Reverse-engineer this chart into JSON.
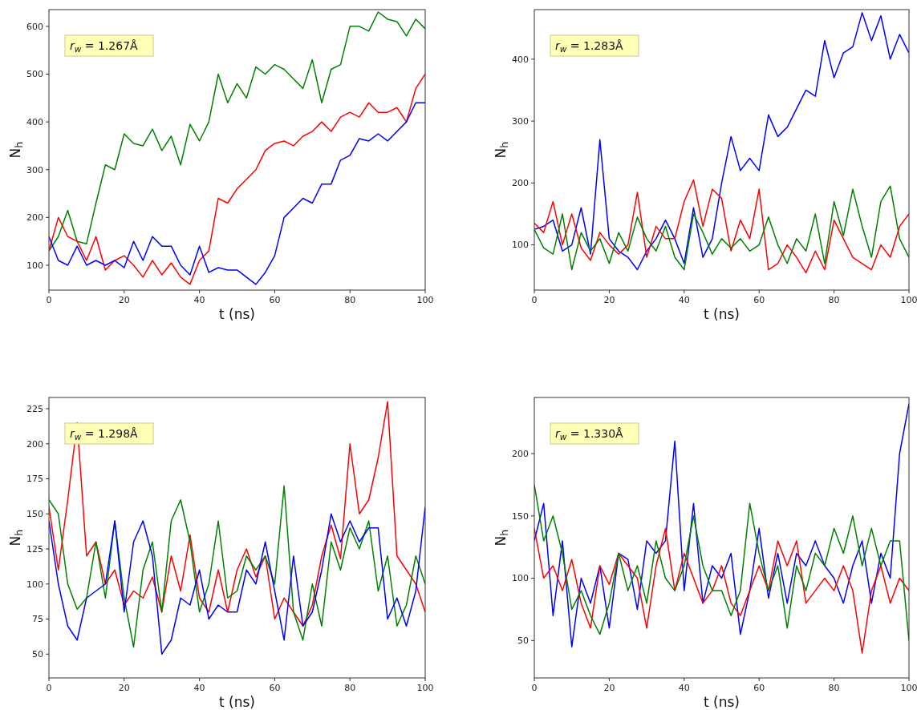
{
  "chart_data": [
    {
      "type": "line",
      "xlabel": "t (ns)",
      "ylabel": "N$_{h}$",
      "annotations": [
        "r$_{w}$ = 1.267Å"
      ],
      "xlim": [
        0,
        100
      ],
      "xticks": [
        0,
        20,
        40,
        60,
        80,
        100
      ],
      "ylim": [
        48,
        635
      ],
      "yticks": [
        100,
        200,
        300,
        400,
        500,
        600
      ],
      "x": [
        0,
        2.5,
        5,
        7.5,
        10,
        12.5,
        15,
        17.5,
        20,
        22.5,
        25,
        27.5,
        30,
        32.5,
        35,
        37.5,
        40,
        42.5,
        45,
        47.5,
        50,
        52.5,
        55,
        57.5,
        60,
        62.5,
        65,
        67.5,
        70,
        72.5,
        75,
        77.5,
        80,
        82.5,
        85,
        87.5,
        90,
        92.5,
        95,
        97.5,
        100
      ],
      "series": [
        {
          "color": "#008000",
          "values": [
            130,
            160,
            215,
            150,
            145,
            230,
            310,
            300,
            375,
            355,
            350,
            385,
            340,
            370,
            310,
            395,
            360,
            400,
            500,
            440,
            480,
            450,
            515,
            500,
            520,
            510,
            490,
            470,
            530,
            440,
            510,
            520,
            600,
            600,
            590,
            630,
            615,
            610,
            580,
            615,
            595
          ]
        },
        {
          "color": "#ff0000",
          "values": [
            130,
            200,
            160,
            150,
            110,
            160,
            90,
            110,
            120,
            100,
            75,
            110,
            80,
            105,
            75,
            60,
            110,
            130,
            240,
            230,
            260,
            280,
            300,
            340,
            355,
            360,
            350,
            370,
            380,
            400,
            380,
            410,
            420,
            410,
            440,
            420,
            420,
            430,
            400,
            470,
            500
          ]
        },
        {
          "color": "#0000ff",
          "values": [
            160,
            110,
            100,
            140,
            100,
            110,
            100,
            110,
            95,
            150,
            110,
            160,
            140,
            140,
            100,
            80,
            140,
            85,
            95,
            90,
            90,
            75,
            60,
            85,
            120,
            200,
            220,
            240,
            230,
            270,
            270,
            320,
            330,
            365,
            360,
            375,
            360,
            380,
            400,
            440,
            440
          ]
        }
      ]
    },
    {
      "type": "line",
      "xlabel": "t (ns)",
      "ylabel": "N$_{h}$",
      "annotations": [
        "r$_{w}$ = 1.283Å"
      ],
      "xlim": [
        0,
        100
      ],
      "xticks": [
        0,
        20,
        40,
        60,
        80,
        100
      ],
      "ylim": [
        27,
        480
      ],
      "yticks": [
        100,
        200,
        300,
        400
      ],
      "x": [
        0,
        2.5,
        5,
        7.5,
        10,
        12.5,
        15,
        17.5,
        20,
        22.5,
        25,
        27.5,
        30,
        32.5,
        35,
        37.5,
        40,
        42.5,
        45,
        47.5,
        50,
        52.5,
        55,
        57.5,
        60,
        62.5,
        65,
        67.5,
        70,
        72.5,
        75,
        77.5,
        80,
        82.5,
        85,
        87.5,
        90,
        92.5,
        95,
        97.5,
        100
      ],
      "series": [
        {
          "color": "#0000ff",
          "values": [
            125,
            130,
            140,
            90,
            100,
            160,
            85,
            270,
            110,
            90,
            80,
            60,
            90,
            110,
            140,
            110,
            70,
            160,
            80,
            110,
            200,
            275,
            220,
            240,
            220,
            310,
            275,
            290,
            320,
            350,
            340,
            430,
            370,
            410,
            420,
            475,
            430,
            470,
            400,
            440,
            410
          ]
        },
        {
          "color": "#ff0000",
          "values": [
            135,
            120,
            170,
            100,
            150,
            95,
            75,
            120,
            100,
            85,
            100,
            185,
            80,
            130,
            110,
            110,
            170,
            205,
            130,
            190,
            175,
            90,
            140,
            110,
            190,
            60,
            70,
            100,
            80,
            55,
            90,
            60,
            140,
            110,
            80,
            70,
            60,
            100,
            80,
            130,
            150
          ]
        },
        {
          "color": "#008000",
          "values": [
            125,
            95,
            85,
            150,
            60,
            120,
            90,
            110,
            70,
            120,
            90,
            145,
            110,
            90,
            130,
            80,
            60,
            150,
            120,
            85,
            110,
            95,
            110,
            90,
            100,
            145,
            100,
            70,
            110,
            90,
            150,
            70,
            170,
            115,
            190,
            130,
            80,
            170,
            195,
            110,
            80
          ]
        }
      ]
    },
    {
      "type": "line",
      "xlabel": "t (ns)",
      "ylabel": "N$_{h}$",
      "annotations": [
        "r$_{w}$ = 1.298Å"
      ],
      "xlim": [
        0,
        100
      ],
      "xticks": [
        0,
        20,
        40,
        60,
        80,
        100
      ],
      "ylim": [
        33,
        233
      ],
      "yticks": [
        50,
        75,
        100,
        125,
        150,
        175,
        200,
        225
      ],
      "x": [
        0,
        2.5,
        5,
        7.5,
        10,
        12.5,
        15,
        17.5,
        20,
        22.5,
        25,
        27.5,
        30,
        32.5,
        35,
        37.5,
        40,
        42.5,
        45,
        47.5,
        50,
        52.5,
        55,
        57.5,
        60,
        62.5,
        65,
        67.5,
        70,
        72.5,
        75,
        77.5,
        80,
        82.5,
        85,
        87.5,
        90,
        92.5,
        95,
        97.5,
        100
      ],
      "series": [
        {
          "color": "#ff0000",
          "values": [
            155,
            110,
            160,
            215,
            120,
            130,
            100,
            110,
            85,
            95,
            90,
            105,
            80,
            120,
            95,
            135,
            90,
            80,
            110,
            80,
            110,
            125,
            105,
            120,
            75,
            90,
            80,
            70,
            85,
            120,
            142,
            118,
            200,
            150,
            160,
            190,
            230,
            120,
            110,
            100,
            80
          ]
        },
        {
          "color": "#008000",
          "values": [
            160,
            150,
            100,
            82,
            90,
            130,
            90,
            145,
            90,
            55,
            110,
            130,
            80,
            145,
            160,
            130,
            80,
            100,
            145,
            90,
            95,
            120,
            110,
            120,
            100,
            170,
            80,
            60,
            100,
            70,
            130,
            110,
            140,
            125,
            145,
            95,
            120,
            70,
            85,
            120,
            100
          ]
        },
        {
          "color": "#0000ff",
          "values": [
            145,
            100,
            70,
            60,
            90,
            95,
            100,
            145,
            80,
            130,
            145,
            120,
            50,
            60,
            90,
            85,
            110,
            75,
            85,
            80,
            80,
            110,
            100,
            130,
            95,
            60,
            120,
            70,
            80,
            110,
            150,
            130,
            145,
            130,
            140,
            140,
            75,
            90,
            70,
            95,
            155
          ]
        }
      ]
    },
    {
      "type": "line",
      "xlabel": "t (ns)",
      "ylabel": "N$_{h}$",
      "annotations": [
        "r$_{w}$ = 1.330Å"
      ],
      "xlim": [
        0,
        100
      ],
      "xticks": [
        0,
        20,
        40,
        60,
        80,
        100
      ],
      "ylim": [
        20,
        245
      ],
      "yticks": [
        50,
        100,
        150,
        200
      ],
      "x": [
        0,
        2.5,
        5,
        7.5,
        10,
        12.5,
        15,
        17.5,
        20,
        22.5,
        25,
        27.5,
        30,
        32.5,
        35,
        37.5,
        40,
        42.5,
        45,
        47.5,
        50,
        52.5,
        55,
        57.5,
        60,
        62.5,
        65,
        67.5,
        70,
        72.5,
        75,
        77.5,
        80,
        82.5,
        85,
        87.5,
        90,
        92.5,
        95,
        97.5,
        100
      ],
      "series": [
        {
          "color": "#0000ff",
          "values": [
            130,
            160,
            70,
            130,
            45,
            100,
            80,
            110,
            60,
            120,
            115,
            75,
            130,
            120,
            130,
            210,
            90,
            160,
            80,
            110,
            100,
            120,
            55,
            90,
            140,
            84,
            120,
            80,
            120,
            110,
            130,
            110,
            100,
            80,
            110,
            130,
            80,
            120,
            100,
            200,
            240
          ]
        },
        {
          "color": "#ff0000",
          "values": [
            140,
            100,
            110,
            90,
            115,
            80,
            60,
            110,
            95,
            120,
            110,
            100,
            60,
            110,
            140,
            90,
            120,
            100,
            80,
            90,
            110,
            80,
            70,
            90,
            110,
            90,
            130,
            110,
            130,
            80,
            90,
            100,
            90,
            110,
            90,
            40,
            90,
            110,
            80,
            100,
            90
          ]
        },
        {
          "color": "#008000",
          "values": [
            175,
            130,
            150,
            120,
            75,
            90,
            70,
            55,
            80,
            120,
            90,
            110,
            80,
            130,
            100,
            90,
            110,
            150,
            110,
            90,
            90,
            70,
            90,
            160,
            120,
            90,
            110,
            60,
            110,
            90,
            120,
            110,
            140,
            120,
            150,
            110,
            140,
            110,
            130,
            130,
            50
          ]
        }
      ]
    }
  ]
}
